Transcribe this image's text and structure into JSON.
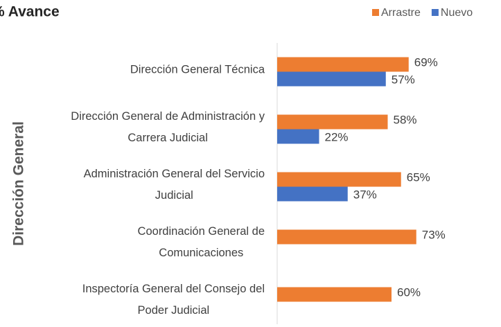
{
  "chart_data": {
    "type": "bar",
    "orientation": "horizontal",
    "title": "% Avance",
    "y_axis_label": "Dirección General",
    "categories": [
      "Dirección General Técnica",
      "Dirección General de Administración y\nCarrera Judicial",
      "Administración General del Servicio\nJudicial",
      "Coordinación General de\nComunicaciones",
      "Inspectoría General del Consejo del\nPoder Judicial"
    ],
    "series": [
      {
        "name": "Arrastre",
        "color": "#ed7d31",
        "values": [
          69,
          58,
          65,
          73,
          60
        ],
        "value_labels": [
          "69%",
          "58%",
          "65%",
          "73%",
          "60%"
        ]
      },
      {
        "name": "Nuevo",
        "color": "#4472c4",
        "values": [
          57,
          22,
          37,
          null,
          null
        ],
        "value_labels": [
          "57%",
          "22%",
          "37%",
          null,
          null
        ]
      }
    ],
    "xlim": [
      0,
      100
    ],
    "legend": "top-right"
  }
}
